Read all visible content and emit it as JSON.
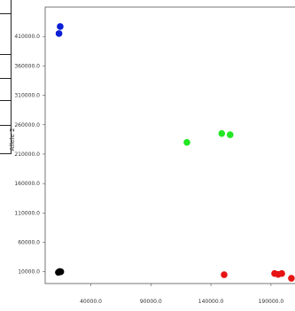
{
  "chart_data": {
    "type": "scatter",
    "title": "",
    "xlabel": "",
    "ylabel": "Allele 2",
    "xlim": [
      2000,
      210000
    ],
    "ylim": [
      -10000,
      460000
    ],
    "xticks": [
      {
        "value": 40000,
        "label": "40000.0"
      },
      {
        "value": 90000,
        "label": "90000.0"
      },
      {
        "value": 140000,
        "label": "140000.0"
      },
      {
        "value": 190000,
        "label": "190000.0"
      }
    ],
    "yticks": [
      {
        "value": 10000,
        "label": "10000.0"
      },
      {
        "value": 60000,
        "label": "60000.0"
      },
      {
        "value": 110000,
        "label": "110000.0"
      },
      {
        "value": 160000,
        "label": "160000.0"
      },
      {
        "value": 210000,
        "label": "210000.0"
      },
      {
        "value": 260000,
        "label": "260000.0"
      },
      {
        "value": 310000,
        "label": "310000.0"
      },
      {
        "value": 360000,
        "label": "360000.0"
      },
      {
        "value": 410000,
        "label": "410000.0"
      }
    ],
    "grid": false,
    "series": [
      {
        "color": "#0a1fd6",
        "points": [
          [
            14500,
            427000
          ],
          [
            13500,
            415000
          ]
        ]
      },
      {
        "color": "#22e622",
        "points": [
          [
            120000,
            230000
          ],
          [
            149000,
            245000
          ],
          [
            156000,
            243000
          ]
        ]
      },
      {
        "color": "#e61414",
        "points": [
          [
            151000,
            5000
          ],
          [
            193000,
            7000
          ],
          [
            196000,
            5500
          ],
          [
            199000,
            7000
          ],
          [
            207000,
            -1000
          ]
        ]
      },
      {
        "color": "#000000",
        "points": [
          [
            13000,
            9000
          ],
          [
            15000,
            10000
          ],
          [
            14000,
            10500
          ]
        ]
      }
    ]
  }
}
